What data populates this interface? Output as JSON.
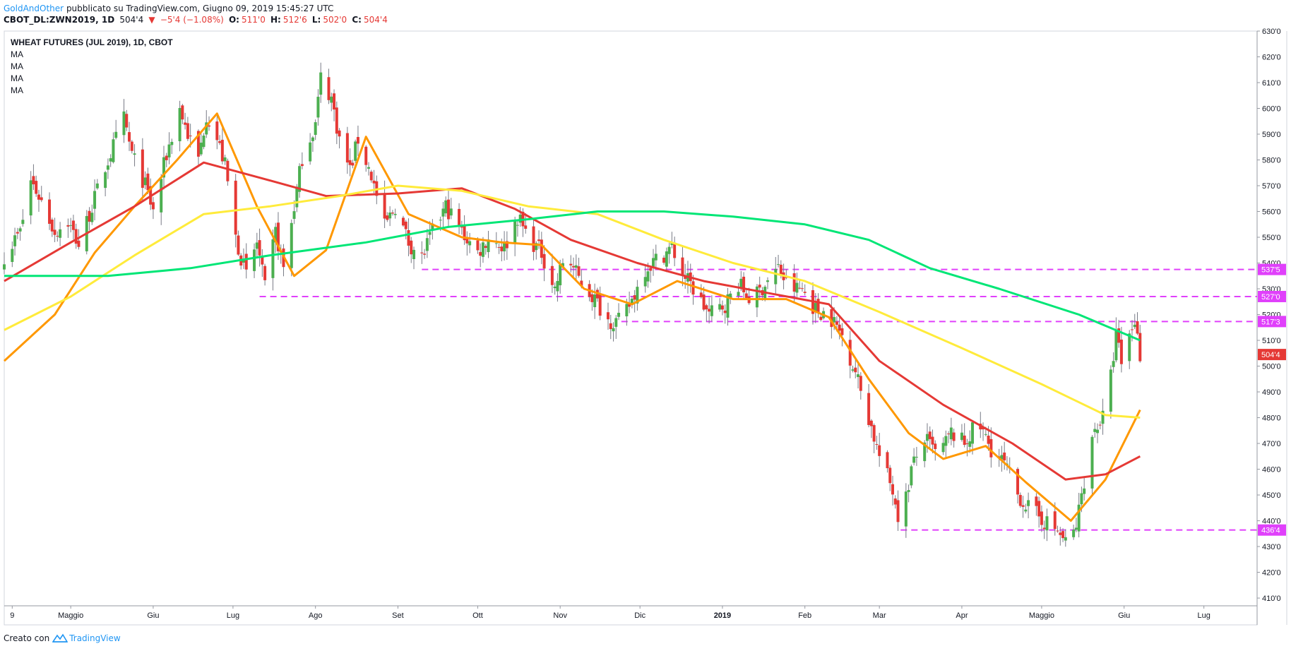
{
  "header": {
    "author": "GoldAndOther",
    "published_text": "pubblicato su TradingView.com, Giugno 09, 2019 15:45:27 UTC",
    "symbol": "CBOT_DL:ZWN2019, 1D",
    "last": "504'4",
    "change": "−5'4 (−1.08%)",
    "open_label": "O:",
    "open": "511'0",
    "high_label": "H:",
    "high": "512'6",
    "low_label": "L:",
    "low": "502'0",
    "close_label": "C:",
    "close": "504'4"
  },
  "legend": {
    "title": "WHEAT FUTURES (JUL 2019), 1D, CBOT",
    "indicators": [
      "MA",
      "MA",
      "MA",
      "MA"
    ]
  },
  "footer": {
    "created_with": "Creato con",
    "brand": "TradingView"
  },
  "colors": {
    "up": "#4caf50",
    "down": "#e53935",
    "ma_fast": "#ff9800",
    "ma_mid": "#e53935",
    "ma_slow": "#ffeb3b",
    "ma_long": "#00e676",
    "level_line": "#e040fb",
    "price_tag": "#e53935"
  },
  "chart_data": {
    "type": "candlestick",
    "price_unit": "cents (eighths notation)",
    "y_range": [
      4070,
      6300
    ],
    "y_ticks": [
      "630'0",
      "620'0",
      "610'0",
      "600'0",
      "590'0",
      "580'0",
      "570'0",
      "560'0",
      "550'0",
      "540'0",
      "530'0",
      "520'0",
      "510'0",
      "500'0",
      "490'0",
      "480'0",
      "470'0",
      "460'0",
      "450'0",
      "440'0",
      "430'0",
      "420'0",
      "410'0"
    ],
    "x_ticks": [
      {
        "label": "9",
        "date": "2018-04-09",
        "bold": false
      },
      {
        "label": "Maggio",
        "date": "2018-05-01",
        "bold": false
      },
      {
        "label": "Giu",
        "date": "2018-06-01",
        "bold": false
      },
      {
        "label": "Lug",
        "date": "2018-07-01",
        "bold": false
      },
      {
        "label": "Ago",
        "date": "2018-08-01",
        "bold": false
      },
      {
        "label": "Set",
        "date": "2018-09-01",
        "bold": false
      },
      {
        "label": "Ott",
        "date": "2018-10-01",
        "bold": false
      },
      {
        "label": "Nov",
        "date": "2018-11-01",
        "bold": false
      },
      {
        "label": "Dic",
        "date": "2018-12-01",
        "bold": false
      },
      {
        "label": "2019",
        "date": "2019-01-01",
        "bold": true
      },
      {
        "label": "Feb",
        "date": "2019-02-01",
        "bold": false
      },
      {
        "label": "Mar",
        "date": "2019-03-01",
        "bold": false
      },
      {
        "label": "Apr",
        "date": "2019-04-01",
        "bold": false
      },
      {
        "label": "Maggio",
        "date": "2019-05-01",
        "bold": false
      },
      {
        "label": "Giu",
        "date": "2019-06-01",
        "bold": false
      },
      {
        "label": "Lug",
        "date": "2019-07-01",
        "bold": false
      }
    ],
    "x_range": [
      "2018-04-06",
      "2019-07-21"
    ],
    "levels": [
      {
        "value": 5375,
        "label": "537'5",
        "from": "2018-09-10"
      },
      {
        "value": 5270,
        "label": "527'0",
        "from": "2018-07-11"
      },
      {
        "value": 5173,
        "label": "517'3",
        "from": "2018-11-24"
      },
      {
        "value": 4364,
        "label": "436'4",
        "from": "2019-03-09"
      }
    ],
    "last_price": {
      "value": 5045,
      "label": "504'4"
    },
    "close_path": [
      [
        "2018-04-06",
        5430
      ],
      [
        "2018-04-12",
        5520
      ],
      [
        "2018-04-16",
        5720
      ],
      [
        "2018-04-20",
        5640
      ],
      [
        "2018-04-25",
        5520
      ],
      [
        "2018-04-30",
        5560
      ],
      [
        "2018-05-04",
        5470
      ],
      [
        "2018-05-09",
        5620
      ],
      [
        "2018-05-14",
        5770
      ],
      [
        "2018-05-18",
        5880
      ],
      [
        "2018-05-21",
        5960
      ],
      [
        "2018-05-24",
        5820
      ],
      [
        "2018-05-29",
        5700
      ],
      [
        "2018-06-01",
        5600
      ],
      [
        "2018-06-06",
        5820
      ],
      [
        "2018-06-11",
        6000
      ],
      [
        "2018-06-14",
        5900
      ],
      [
        "2018-06-18",
        5800
      ],
      [
        "2018-06-21",
        5980
      ],
      [
        "2018-06-25",
        5880
      ],
      [
        "2018-06-28",
        5780
      ],
      [
        "2018-07-02",
        5500
      ],
      [
        "2018-07-06",
        5350
      ],
      [
        "2018-07-10",
        5480
      ],
      [
        "2018-07-13",
        5300
      ],
      [
        "2018-07-17",
        5520
      ],
      [
        "2018-07-20",
        5380
      ],
      [
        "2018-07-24",
        5620
      ],
      [
        "2018-07-27",
        5810
      ],
      [
        "2018-08-01",
        5940
      ],
      [
        "2018-08-03",
        6120
      ],
      [
        "2018-08-07",
        6040
      ],
      [
        "2018-08-10",
        5880
      ],
      [
        "2018-08-14",
        5760
      ],
      [
        "2018-08-17",
        5880
      ],
      [
        "2018-08-22",
        5740
      ],
      [
        "2018-08-27",
        5540
      ],
      [
        "2018-08-31",
        5620
      ],
      [
        "2018-09-05",
        5480
      ],
      [
        "2018-09-10",
        5420
      ],
      [
        "2018-09-14",
        5520
      ],
      [
        "2018-09-19",
        5620
      ],
      [
        "2018-09-25",
        5520
      ],
      [
        "2018-10-01",
        5440
      ],
      [
        "2018-10-05",
        5500
      ],
      [
        "2018-10-11",
        5460
      ],
      [
        "2018-10-16",
        5580
      ],
      [
        "2018-10-20",
        5500
      ],
      [
        "2018-10-25",
        5440
      ],
      [
        "2018-10-30",
        5300
      ],
      [
        "2018-11-03",
        5440
      ],
      [
        "2018-11-08",
        5340
      ],
      [
        "2018-11-14",
        5260
      ],
      [
        "2018-11-19",
        5180
      ],
      [
        "2018-11-24",
        5170
      ],
      [
        "2018-11-29",
        5280
      ],
      [
        "2018-12-03",
        5380
      ],
      [
        "2018-12-08",
        5420
      ],
      [
        "2018-12-13",
        5460
      ],
      [
        "2018-12-17",
        5360
      ],
      [
        "2018-12-21",
        5300
      ],
      [
        "2018-12-27",
        5200
      ],
      [
        "2019-01-02",
        5240
      ],
      [
        "2019-01-07",
        5320
      ],
      [
        "2019-01-12",
        5250
      ],
      [
        "2019-01-17",
        5320
      ],
      [
        "2019-01-22",
        5380
      ],
      [
        "2019-01-26",
        5300
      ],
      [
        "2019-01-31",
        5300
      ],
      [
        "2019-02-05",
        5220
      ],
      [
        "2019-02-10",
        5200
      ],
      [
        "2019-02-15",
        5120
      ],
      [
        "2019-02-20",
        4980
      ],
      [
        "2019-02-25",
        4800
      ],
      [
        "2019-03-01",
        4650
      ],
      [
        "2019-03-06",
        4520
      ],
      [
        "2019-03-09",
        4380
      ],
      [
        "2019-03-13",
        4600
      ],
      [
        "2019-03-18",
        4720
      ],
      [
        "2019-03-23",
        4650
      ],
      [
        "2019-03-28",
        4740
      ],
      [
        "2019-04-02",
        4700
      ],
      [
        "2019-04-07",
        4780
      ],
      [
        "2019-04-12",
        4680
      ],
      [
        "2019-04-17",
        4620
      ],
      [
        "2019-04-22",
        4500
      ],
      [
        "2019-04-27",
        4440
      ],
      [
        "2019-05-02",
        4400
      ],
      [
        "2019-05-07",
        4360
      ],
      [
        "2019-05-11",
        4300
      ],
      [
        "2019-05-14",
        4380
      ],
      [
        "2019-05-17",
        4560
      ],
      [
        "2019-05-21",
        4760
      ],
      [
        "2019-05-24",
        4800
      ],
      [
        "2019-05-27",
        4960
      ],
      [
        "2019-05-29",
        5120
      ],
      [
        "2019-06-01",
        4960
      ],
      [
        "2019-06-03",
        5120
      ],
      [
        "2019-06-05",
        5180
      ],
      [
        "2019-06-07",
        5045
      ]
    ],
    "series": [
      {
        "name": "",
        "color": "#ff9800",
        "values": [
          [
            "2018-04-06",
            5020
          ],
          [
            "2018-04-25",
            5200
          ],
          [
            "2018-05-10",
            5440
          ],
          [
            "2018-05-25",
            5620
          ],
          [
            "2018-06-10",
            5800
          ],
          [
            "2018-06-25",
            5980
          ],
          [
            "2018-07-10",
            5620
          ],
          [
            "2018-07-24",
            5350
          ],
          [
            "2018-08-05",
            5450
          ],
          [
            "2018-08-20",
            5890
          ],
          [
            "2018-09-05",
            5590
          ],
          [
            "2018-09-25",
            5500
          ],
          [
            "2018-10-10",
            5480
          ],
          [
            "2018-10-25",
            5470
          ],
          [
            "2018-11-10",
            5300
          ],
          [
            "2018-11-28",
            5240
          ],
          [
            "2018-12-15",
            5330
          ],
          [
            "2019-01-05",
            5260
          ],
          [
            "2019-01-25",
            5260
          ],
          [
            "2019-02-10",
            5190
          ],
          [
            "2019-02-25",
            4950
          ],
          [
            "2019-03-12",
            4740
          ],
          [
            "2019-03-25",
            4640
          ],
          [
            "2019-04-10",
            4690
          ],
          [
            "2019-04-25",
            4550
          ],
          [
            "2019-05-12",
            4400
          ],
          [
            "2019-05-25",
            4560
          ],
          [
            "2019-06-07",
            4830
          ]
        ]
      },
      {
        "name": "",
        "color": "#e53935",
        "values": [
          [
            "2018-04-06",
            5330
          ],
          [
            "2018-05-01",
            5480
          ],
          [
            "2018-05-25",
            5620
          ],
          [
            "2018-06-20",
            5790
          ],
          [
            "2018-07-15",
            5720
          ],
          [
            "2018-08-05",
            5660
          ],
          [
            "2018-09-01",
            5670
          ],
          [
            "2018-09-25",
            5690
          ],
          [
            "2018-10-15",
            5610
          ],
          [
            "2018-11-05",
            5490
          ],
          [
            "2018-11-30",
            5400
          ],
          [
            "2018-12-25",
            5330
          ],
          [
            "2019-01-20",
            5280
          ],
          [
            "2019-02-10",
            5240
          ],
          [
            "2019-03-01",
            5020
          ],
          [
            "2019-03-25",
            4850
          ],
          [
            "2019-04-20",
            4700
          ],
          [
            "2019-05-10",
            4560
          ],
          [
            "2019-05-25",
            4580
          ],
          [
            "2019-06-07",
            4650
          ]
        ]
      },
      {
        "name": "",
        "color": "#ffeb3b",
        "values": [
          [
            "2018-04-06",
            5140
          ],
          [
            "2018-05-01",
            5270
          ],
          [
            "2018-05-25",
            5430
          ],
          [
            "2018-06-20",
            5590
          ],
          [
            "2018-07-15",
            5620
          ],
          [
            "2018-08-10",
            5660
          ],
          [
            "2018-09-01",
            5700
          ],
          [
            "2018-09-25",
            5680
          ],
          [
            "2018-10-20",
            5620
          ],
          [
            "2018-11-15",
            5590
          ],
          [
            "2018-12-10",
            5490
          ],
          [
            "2019-01-05",
            5400
          ],
          [
            "2019-02-01",
            5330
          ],
          [
            "2019-03-01",
            5210
          ],
          [
            "2019-04-01",
            5070
          ],
          [
            "2019-05-01",
            4930
          ],
          [
            "2019-05-25",
            4810
          ],
          [
            "2019-06-07",
            4800
          ]
        ]
      },
      {
        "name": "",
        "color": "#00e676",
        "values": [
          [
            "2018-04-06",
            5350
          ],
          [
            "2018-05-15",
            5350
          ],
          [
            "2018-06-15",
            5380
          ],
          [
            "2018-07-15",
            5430
          ],
          [
            "2018-08-20",
            5480
          ],
          [
            "2018-09-20",
            5540
          ],
          [
            "2018-10-20",
            5570
          ],
          [
            "2018-11-15",
            5600
          ],
          [
            "2018-12-10",
            5600
          ],
          [
            "2019-01-05",
            5580
          ],
          [
            "2019-02-01",
            5550
          ],
          [
            "2019-02-25",
            5490
          ],
          [
            "2019-03-20",
            5380
          ],
          [
            "2019-04-15",
            5300
          ],
          [
            "2019-05-15",
            5200
          ],
          [
            "2019-06-07",
            5100
          ]
        ]
      }
    ]
  }
}
